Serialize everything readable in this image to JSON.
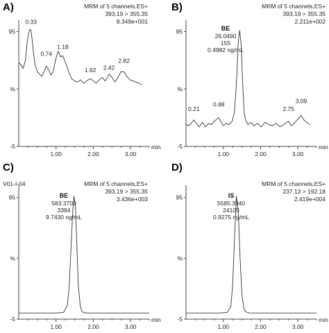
{
  "chart_data": [
    {
      "panel": "A)",
      "type": "line",
      "header": [
        "MRM of 5 channels,ES+",
        "393.19 > 355.35",
        "8.349e+001"
      ],
      "annotation": [],
      "peak_labels": [
        "0.33",
        "0.74",
        "1.18",
        "1.92",
        "2.42",
        "2.82"
      ],
      "peak_label_x": [
        0.33,
        0.74,
        1.18,
        1.92,
        2.42,
        2.82
      ],
      "peak_label_y": [
        100,
        72,
        78,
        58,
        60,
        66
      ],
      "xlim": [
        0.0,
        3.5
      ],
      "ylim": [
        -5,
        105
      ],
      "y_ticks": [
        "95",
        "%",
        "-5"
      ],
      "x_ticks": [
        "1.00",
        "2.00",
        "3.00"
      ],
      "xlabel": "min",
      "x": [
        0.0,
        0.06,
        0.12,
        0.18,
        0.22,
        0.26,
        0.3,
        0.33,
        0.36,
        0.4,
        0.44,
        0.5,
        0.56,
        0.62,
        0.68,
        0.74,
        0.8,
        0.86,
        0.92,
        1.0,
        1.06,
        1.12,
        1.18,
        1.24,
        1.3,
        1.36,
        1.42,
        1.5,
        1.58,
        1.66,
        1.74,
        1.82,
        1.92,
        2.0,
        2.08,
        2.16,
        2.24,
        2.32,
        2.42,
        2.5,
        2.58,
        2.66,
        2.74,
        2.82,
        2.9,
        2.98,
        3.06,
        3.14,
        3.22,
        3.3
      ],
      "y": [
        68,
        66,
        63,
        70,
        84,
        93,
        97,
        96,
        88,
        75,
        66,
        60,
        58,
        56,
        60,
        65,
        62,
        57,
        60,
        72,
        78,
        73,
        74,
        69,
        64,
        58,
        54,
        52,
        51,
        53,
        50,
        52,
        54,
        52,
        50,
        53,
        55,
        52,
        58,
        55,
        51,
        55,
        60,
        60,
        56,
        53,
        52,
        51,
        50,
        49
      ]
    },
    {
      "panel": "B)",
      "type": "line",
      "header": [
        "MRM of 5 channels,ES+",
        "393.19 > 355.35",
        "2.211e+002"
      ],
      "annotation": [
        "BE",
        "26.0490",
        "155",
        "0.4982 ng/mL"
      ],
      "peak_labels": [
        "0.21",
        "0.88",
        "2.75",
        "3.09"
      ],
      "peak_label_x": [
        0.21,
        0.88,
        2.75,
        3.09
      ],
      "peak_label_y": [
        24,
        28,
        24,
        31
      ],
      "xlim": [
        0.0,
        3.5
      ],
      "ylim": [
        -5,
        105
      ],
      "y_ticks": [
        "95",
        "%",
        "-5"
      ],
      "x_ticks": [
        "1.00",
        "2.00",
        "3.00"
      ],
      "xlabel": "min",
      "x": [
        0.0,
        0.08,
        0.16,
        0.21,
        0.28,
        0.36,
        0.44,
        0.52,
        0.6,
        0.68,
        0.76,
        0.84,
        0.88,
        0.94,
        1.0,
        1.08,
        1.16,
        1.24,
        1.3,
        1.36,
        1.4,
        1.44,
        1.48,
        1.52,
        1.56,
        1.6,
        1.66,
        1.74,
        1.82,
        1.92,
        2.02,
        2.12,
        2.22,
        2.32,
        2.42,
        2.52,
        2.62,
        2.7,
        2.75,
        2.82,
        2.9,
        2.98,
        3.04,
        3.09,
        3.16,
        3.24,
        3.32
      ],
      "y": [
        14,
        13,
        16,
        18,
        15,
        12,
        16,
        12,
        15,
        14,
        17,
        19,
        20,
        16,
        13,
        15,
        14,
        17,
        25,
        55,
        85,
        96,
        84,
        50,
        24,
        18,
        14,
        16,
        13,
        15,
        12,
        16,
        14,
        13,
        15,
        12,
        14,
        16,
        17,
        13,
        15,
        18,
        20,
        22,
        18,
        16,
        14
      ]
    },
    {
      "panel": "C)",
      "type": "line",
      "sample_id": "V01-I-04",
      "header": [
        "MRM of 5 channels,ES+",
        "393.19 > 355.35",
        "3.436e+003"
      ],
      "annotation": [
        "BE",
        "583.3700",
        "3384",
        "9.7430 ng/mL"
      ],
      "peak_labels": [],
      "xlim": [
        0.0,
        3.5
      ],
      "ylim": [
        -5,
        105
      ],
      "y_ticks": [
        "95",
        "%",
        "-5"
      ],
      "x_ticks": [
        "1.00",
        "2.00",
        "3.00"
      ],
      "xlabel": "min",
      "x": [
        0.0,
        0.5,
        1.0,
        1.2,
        1.3,
        1.35,
        1.4,
        1.45,
        1.48,
        1.52,
        1.56,
        1.6,
        1.65,
        1.7,
        1.8,
        2.0,
        2.5,
        3.0,
        3.5
      ],
      "y": [
        0,
        0,
        0,
        0.5,
        6,
        20,
        52,
        85,
        96,
        88,
        55,
        22,
        6,
        1,
        0,
        0,
        0,
        0,
        0
      ]
    },
    {
      "panel": "D)",
      "type": "line",
      "header": [
        "MRM of 5 channels,ES+",
        "237.13 > 192.18",
        "2.419e+004"
      ],
      "annotation": [
        "IS",
        "5585.3940",
        "24105",
        "0.9275 ng/mL"
      ],
      "peak_labels": [],
      "xlim": [
        0.0,
        3.5
      ],
      "ylim": [
        -5,
        105
      ],
      "y_ticks": [
        "95",
        "%",
        "-5"
      ],
      "x_ticks": [
        "1.00",
        "2.00",
        "3.00"
      ],
      "xlabel": "min",
      "x": [
        0.0,
        0.5,
        0.9,
        1.1,
        1.2,
        1.25,
        1.3,
        1.35,
        1.4,
        1.45,
        1.5,
        1.55,
        1.6,
        1.7,
        1.9,
        2.5,
        3.0,
        3.5
      ],
      "y": [
        0,
        0,
        0,
        0.5,
        5,
        22,
        60,
        96,
        85,
        45,
        15,
        4,
        1,
        0,
        0,
        0,
        0,
        0
      ]
    }
  ]
}
